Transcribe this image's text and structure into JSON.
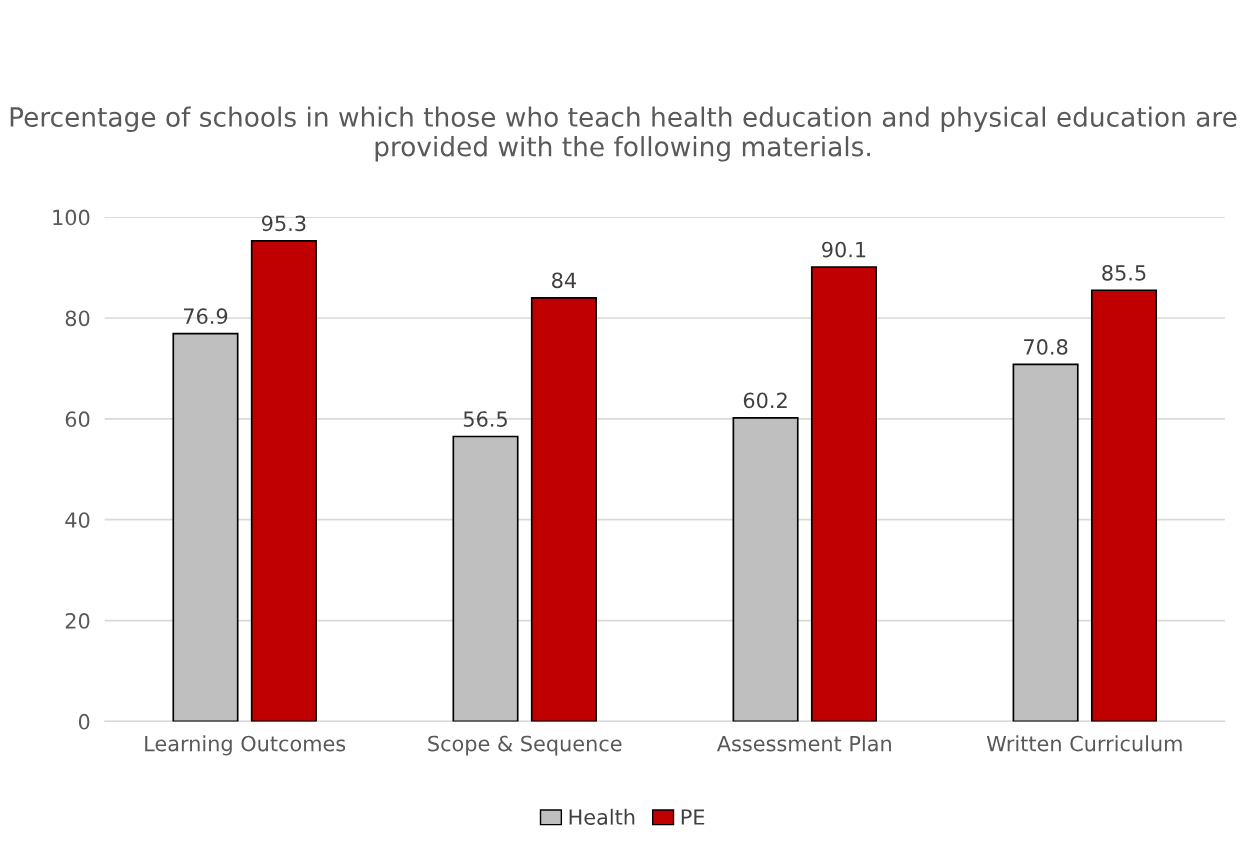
{
  "chart_data": {
    "type": "bar",
    "title": "Percentage of schools in which those who teach health education and physical education are provided with the following materials.",
    "categories": [
      "Learning Outcomes",
      "Scope & Sequence",
      "Assessment Plan",
      "Written Curriculum"
    ],
    "series": [
      {
        "name": "Health",
        "color": "#bfbfbf",
        "values": [
          76.9,
          56.5,
          60.2,
          70.8
        ]
      },
      {
        "name": "PE",
        "color": "#c00000",
        "values": [
          95.3,
          84,
          90.1,
          85.5
        ]
      }
    ],
    "ylim": [
      0,
      100
    ],
    "yticks": [
      0,
      20,
      40,
      60,
      80,
      100
    ],
    "grid": "y",
    "legend": "bottom",
    "data_labels": true
  }
}
